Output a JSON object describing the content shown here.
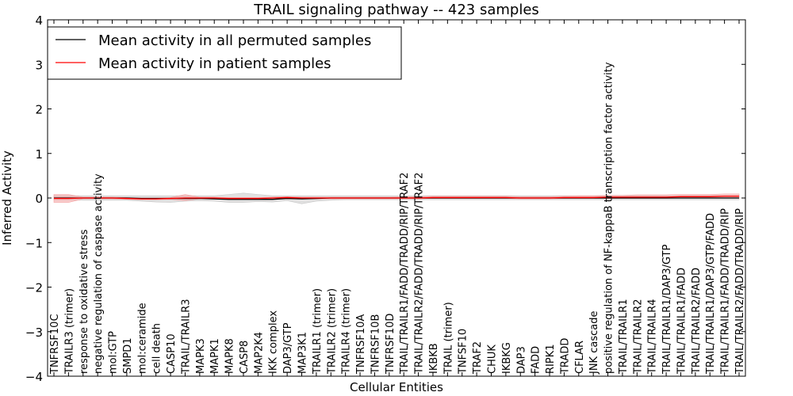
{
  "chart_data": {
    "type": "line",
    "title": "TRAIL signaling pathway -- 423 samples",
    "xlabel": "Cellular Entities",
    "ylabel": "Inferred Activity",
    "ylim": [
      -4,
      4
    ],
    "yticks": [
      -4,
      -3,
      -2,
      -1,
      0,
      1,
      2,
      3,
      4
    ],
    "ytick_labels": [
      "−4",
      "−3",
      "−2",
      "−1",
      "0",
      "1",
      "2",
      "3",
      "4"
    ],
    "legend_position": "top-left",
    "categories": [
      "TNFRSF10C",
      "TRAILR3 (trimer)",
      "response to oxidative stress",
      "negative regulation of caspase activity",
      "mol:GTP",
      "SMPD1",
      "mol:ceramide",
      "cell death",
      "CASP10",
      "TRAIL/TRAILR3",
      "MAPK3",
      "MAPK1",
      "MAPK8",
      "CASP8",
      "MAP2K4",
      "IKK complex",
      "DAP3/GTP",
      "MAP3K1",
      "TRAILR1 (trimer)",
      "TRAILR2 (trimer)",
      "TRAILR4 (trimer)",
      "TNFRSF10A",
      "TNFRSF10B",
      "TNFRSF10D",
      "TRAIL/TRAILR1/FADD/TRADD/RIP/TRAF2",
      "TRAIL/TRAILR2/FADD/TRADD/RIP/TRAF2",
      "IKBKB",
      "TRAIL (trimer)",
      "TNFSF10",
      "TRAF2",
      "CHUK",
      "IKBKG",
      "DAP3",
      "FADD",
      "RIPK1",
      "TRADD",
      "CFLAR",
      "JNK cascade",
      "positive regulation of NF-kappaB transcription factor activity",
      "TRAIL/TRAILR1",
      "TRAIL/TRAILR2",
      "TRAIL/TRAILR4",
      "TRAIL/TRAILR1/DAP3/GTP",
      "TRAIL/TRAILR1/FADD",
      "TRAIL/TRAILR2/FADD",
      "TRAIL/TRAILR1/DAP3/GTP/FADD",
      "TRAIL/TRAILR1/FADD/TRADD/RIP",
      "TRAIL/TRAILR2/FADD/TRADD/RIP"
    ],
    "series": [
      {
        "name": "Mean activity in all permuted samples",
        "color": "#000000",
        "band_color": "#c8c8c8",
        "values": [
          0.0,
          0.0,
          0.0,
          0.0,
          0.0,
          0.0,
          -0.01,
          -0.01,
          -0.01,
          -0.01,
          -0.01,
          -0.02,
          -0.03,
          -0.03,
          -0.03,
          -0.03,
          -0.01,
          -0.02,
          -0.01,
          0.0,
          0.0,
          0.0,
          0.0,
          0.0,
          0.0,
          0.0,
          0.0,
          0.0,
          0.0,
          0.0,
          0.0,
          0.0,
          0.0,
          0.0,
          0.0,
          0.0,
          0.0,
          0.0,
          0.0,
          0.0,
          0.0,
          0.0,
          0.0,
          0.0,
          0.0,
          0.0,
          0.0,
          0.0
        ],
        "band_lower": [
          -0.04,
          -0.04,
          -0.05,
          -0.05,
          -0.05,
          -0.05,
          -0.07,
          -0.09,
          -0.1,
          -0.07,
          -0.06,
          -0.07,
          -0.1,
          -0.1,
          -0.08,
          -0.09,
          -0.06,
          -0.13,
          -0.07,
          -0.05,
          -0.04,
          -0.04,
          -0.04,
          -0.04,
          -0.04,
          -0.04,
          -0.04,
          -0.04,
          -0.04,
          -0.04,
          -0.04,
          -0.04,
          -0.04,
          -0.04,
          -0.04,
          -0.04,
          -0.04,
          -0.04,
          -0.04,
          -0.04,
          -0.04,
          -0.04,
          -0.04,
          -0.04,
          -0.04,
          -0.04,
          -0.04,
          -0.04
        ],
        "band_upper": [
          0.05,
          0.05,
          0.05,
          0.05,
          0.05,
          0.05,
          0.05,
          0.05,
          0.05,
          0.05,
          0.05,
          0.05,
          0.08,
          0.11,
          0.08,
          0.05,
          0.05,
          0.05,
          0.05,
          0.05,
          0.05,
          0.05,
          0.05,
          0.05,
          0.05,
          0.05,
          0.05,
          0.05,
          0.05,
          0.05,
          0.05,
          0.05,
          0.05,
          0.05,
          0.05,
          0.05,
          0.05,
          0.05,
          0.05,
          0.05,
          0.05,
          0.05,
          0.05,
          0.05,
          0.05,
          0.05,
          0.05,
          0.05
        ]
      },
      {
        "name": "Mean activity in patient samples",
        "color": "#ff0000",
        "band_color": "#f4a0a0",
        "values": [
          -0.01,
          -0.01,
          0.0,
          0.0,
          0.0,
          -0.01,
          -0.02,
          -0.02,
          -0.01,
          0.0,
          0.0,
          0.0,
          -0.01,
          -0.01,
          -0.01,
          0.0,
          0.01,
          0.0,
          0.0,
          0.0,
          0.0,
          0.0,
          0.0,
          0.0,
          0.0,
          0.0,
          0.01,
          0.01,
          0.01,
          0.01,
          0.01,
          0.01,
          0.0,
          0.0,
          0.0,
          0.01,
          0.01,
          0.01,
          0.02,
          0.02,
          0.02,
          0.02,
          0.02,
          0.03,
          0.03,
          0.03,
          0.04,
          0.04
        ],
        "band_lower": [
          -0.1,
          -0.1,
          -0.02,
          -0.02,
          -0.02,
          -0.03,
          -0.04,
          -0.04,
          -0.03,
          -0.06,
          -0.02,
          -0.02,
          -0.03,
          -0.03,
          -0.03,
          -0.02,
          -0.01,
          -0.02,
          -0.02,
          -0.02,
          -0.02,
          -0.02,
          -0.02,
          -0.02,
          -0.02,
          -0.02,
          -0.01,
          -0.01,
          -0.01,
          -0.01,
          -0.01,
          -0.01,
          -0.02,
          -0.02,
          -0.02,
          -0.01,
          -0.01,
          -0.01,
          -0.01,
          -0.01,
          -0.01,
          -0.01,
          -0.01,
          0.0,
          0.0,
          0.0,
          0.0,
          0.0
        ],
        "band_upper": [
          0.08,
          0.08,
          0.02,
          0.02,
          0.02,
          0.01,
          0.0,
          0.0,
          0.01,
          0.08,
          0.02,
          0.02,
          0.01,
          0.01,
          0.01,
          0.02,
          0.03,
          0.02,
          0.02,
          0.02,
          0.02,
          0.02,
          0.02,
          0.02,
          0.03,
          0.03,
          0.04,
          0.04,
          0.04,
          0.04,
          0.04,
          0.04,
          0.03,
          0.03,
          0.03,
          0.04,
          0.05,
          0.05,
          0.06,
          0.06,
          0.07,
          0.07,
          0.07,
          0.08,
          0.08,
          0.08,
          0.09,
          0.09
        ]
      }
    ]
  }
}
